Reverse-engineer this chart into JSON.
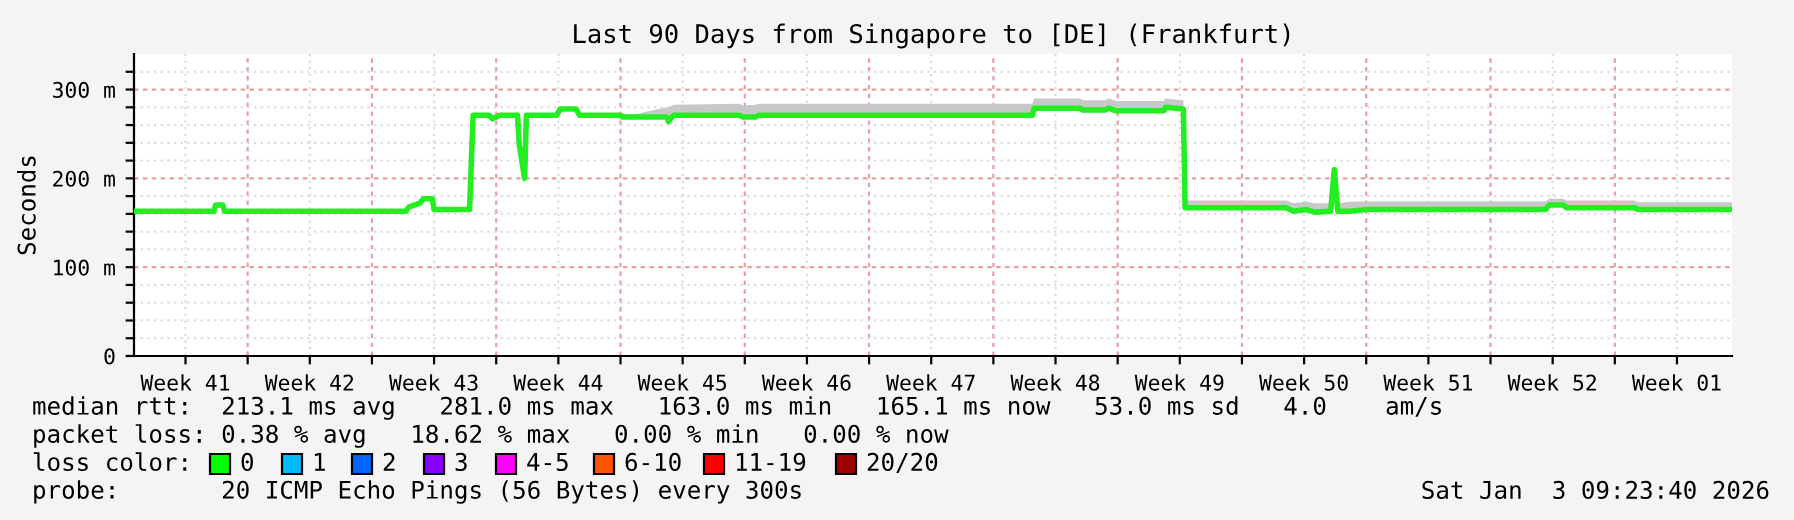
{
  "chart_data": {
    "type": "line",
    "title": "Last 90 Days from Singapore to [DE] (Frankfurt)",
    "ylabel": "Seconds",
    "x": [
      "2025-10-06T14:24",
      "2025-10-11T02:24",
      "2025-10-11T04:48",
      "2025-10-11T14:24",
      "2025-10-11T16:48",
      "2025-10-21T21:36",
      "2025-10-22T02:24",
      "2025-10-22T16:48",
      "2025-10-22T21:36",
      "2025-10-23T09:36",
      "2025-10-23T12:00",
      "2025-10-25T12:00",
      "2025-10-25T16:48",
      "2025-10-26T14:24",
      "2025-10-26T19:12",
      "2025-10-27T04:48",
      "2025-10-28T04:48",
      "2025-10-28T07:12",
      "2025-10-28T14:24",
      "2025-10-28T16:48",
      "2025-10-30T09:36",
      "2025-10-30T14:24",
      "2025-10-31T12:00",
      "2025-10-31T16:48",
      "2025-11-03T00:00",
      "2025-11-03T02:24",
      "2025-11-05T14:24",
      "2025-11-05T16:48",
      "2025-11-06T00:00",
      "2025-11-09T16:48",
      "2025-11-09T21:36",
      "2025-11-10T14:24",
      "2025-11-10T19:12",
      "2025-11-26T04:48",
      "2025-11-26T07:12",
      "2025-11-28T21:36",
      "2025-11-29T00:00",
      "2025-11-30T07:12",
      "2025-11-30T12:00",
      "2025-11-30T21:36",
      "2025-12-03T14:24",
      "2025-12-03T16:48",
      "2025-12-04T16:48",
      "2025-12-04T19:12",
      "2025-12-10T12:00",
      "2025-12-10T21:36",
      "2025-12-11T14:24",
      "2025-12-12T02:24",
      "2025-12-13T00:00",
      "2025-12-13T04:48",
      "2025-12-13T09:36",
      "2025-12-14T02:24",
      "2025-12-15T00:00",
      "2025-12-25T02:24",
      "2025-12-25T07:12",
      "2025-12-26T02:24",
      "2025-12-26T07:12",
      "2025-12-30T02:24",
      "2025-12-30T07:12",
      "2026-01-04T14:24"
    ],
    "series": [
      {
        "color": "#22ee22",
        "values": [
          163,
          163,
          170,
          170,
          163,
          163,
          168,
          172,
          177,
          177,
          165,
          165,
          271,
          271,
          267,
          271,
          271,
          238,
          200,
          271,
          271,
          278,
          278,
          271,
          271,
          269,
          269,
          264,
          271,
          271,
          269,
          269,
          271,
          271,
          279,
          279,
          277,
          277,
          279,
          276,
          276,
          280,
          278,
          167,
          167,
          163,
          165,
          162,
          163,
          210,
          163,
          163,
          165,
          165,
          170,
          170,
          167,
          167,
          165,
          165
        ],
        "lower": [
          163,
          163,
          170,
          170,
          163,
          163,
          168,
          172,
          177,
          177,
          165,
          165,
          271,
          271,
          267,
          271,
          271,
          238,
          200,
          271,
          271,
          278,
          278,
          271,
          271,
          269,
          269,
          264,
          271,
          271,
          269,
          269,
          271,
          271,
          279,
          279,
          277,
          277,
          279,
          276,
          276,
          280,
          278,
          167,
          167,
          163,
          165,
          162,
          163,
          210,
          163,
          163,
          165,
          165,
          170,
          170,
          167,
          167,
          165,
          165
        ],
        "upper": [
          163,
          163,
          170,
          170,
          163,
          163,
          168,
          172,
          177,
          177,
          165,
          165,
          271,
          271,
          267,
          271,
          271,
          238,
          200,
          271,
          271,
          278,
          278,
          271,
          271,
          269,
          280,
          280,
          283,
          284,
          282,
          283,
          284,
          284,
          290,
          290,
          288,
          288,
          290,
          287,
          287,
          290,
          288,
          175,
          175,
          172,
          174,
          172,
          172,
          212,
          172,
          174,
          174,
          174,
          177,
          177,
          175,
          175,
          173,
          173
        ]
      }
    ],
    "xlim": [
      "2025-10-06T14:24",
      "2026-01-04T14:24"
    ],
    "xticks": [
      {
        "value": "2025-10-09T12:00",
        "label": "Week 41"
      },
      {
        "value": "2025-10-16T12:00",
        "label": "Week 42"
      },
      {
        "value": "2025-10-23T12:00",
        "label": "Week 43"
      },
      {
        "value": "2025-10-30T12:00",
        "label": "Week 44"
      },
      {
        "value": "2025-11-06T12:00",
        "label": "Week 45"
      },
      {
        "value": "2025-11-13T12:00",
        "label": "Week 46"
      },
      {
        "value": "2025-11-20T12:00",
        "label": "Week 47"
      },
      {
        "value": "2025-11-27T12:00",
        "label": "Week 48"
      },
      {
        "value": "2025-12-04T12:00",
        "label": "Week 49"
      },
      {
        "value": "2025-12-11T12:00",
        "label": "Week 50"
      },
      {
        "value": "2025-12-18T12:00",
        "label": "Week 51"
      },
      {
        "value": "2025-12-25T12:00",
        "label": "Week 52"
      },
      {
        "value": "2026-01-01T12:00",
        "label": "Week 01"
      },
      {
        "value": "2025-10-13",
        "label": null
      },
      {
        "value": "2025-10-20",
        "label": null
      },
      {
        "value": "2025-10-27",
        "label": null
      },
      {
        "value": "2025-11-03",
        "label": null
      },
      {
        "value": "2025-11-10",
        "label": null
      },
      {
        "value": "2025-11-17",
        "label": null
      },
      {
        "value": "2025-11-24",
        "label": null
      },
      {
        "value": "2025-12-01",
        "label": null
      },
      {
        "value": "2025-12-08",
        "label": null
      },
      {
        "value": "2025-12-15",
        "label": null
      },
      {
        "value": "2025-12-22",
        "label": null
      },
      {
        "value": "2025-12-29",
        "label": null
      }
    ],
    "ylim": [
      0,
      340
    ],
    "yticks": [
      0,
      {
        "value": 100,
        "label": "100 m"
      },
      {
        "value": 200,
        "label": "200 m"
      },
      {
        "value": 300,
        "label": "300 m"
      },
      {
        "value": 20,
        "label": null
      },
      {
        "value": 40,
        "label": null
      },
      {
        "value": 60,
        "label": null
      },
      {
        "value": 80,
        "label": null
      },
      {
        "value": 120,
        "label": null
      },
      {
        "value": 140,
        "label": null
      },
      {
        "value": 160,
        "label": null
      },
      {
        "value": 180,
        "label": null
      },
      {
        "value": 220,
        "label": null
      },
      {
        "value": 240,
        "label": null
      },
      {
        "value": 260,
        "label": null
      },
      {
        "value": 280,
        "label": null
      },
      {
        "value": 320,
        "label": null
      }
    ],
    "grid": true,
    "marker": "none",
    "line_style": "solid",
    "annotations": [
      "median rtt:  213.1 ms avg   281.0 ms max   163.0 ms min   165.1 ms now   53.0 ms sd   4.0    am/s",
      "packet loss: 0.38 % avg   18.62 % max   0.00 % min   0.00 % now",
      "loss color:",
      "0",
      "1",
      "2",
      "3",
      "4-5",
      "6-10",
      "11-19",
      "20/20",
      "probe:       20 ICMP Echo Pings (56 Bytes) every 300s",
      "Sat Jan  3 09:23:40 2026"
    ]
  }
}
